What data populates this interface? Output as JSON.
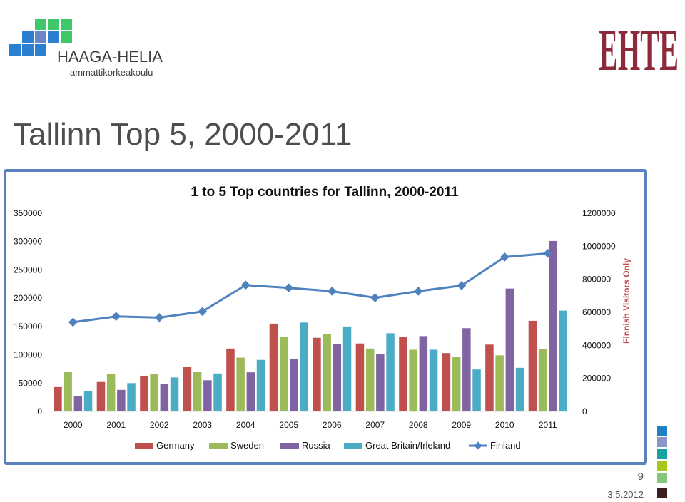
{
  "slide": {
    "title": "Tallinn Top 5, 2000-2011",
    "page_number": "9",
    "date": "3.5.2012"
  },
  "logos": {
    "left_name": "HAAGA-HELIA",
    "left_sub": "ammattikorkeakoulu",
    "right_name": "EHTE"
  },
  "colors": {
    "Germany": "#c0504d",
    "Sweden": "#9bbb59",
    "Russia": "#8064a2",
    "GreatBritain": "#4bacc6",
    "Finland": "#4f81bd",
    "frame": "#5a82be",
    "accent_text": "#c0504d"
  },
  "side_squares": [
    "#1f7fc4",
    "#8a96c8",
    "#17a2a0",
    "#a8c81e",
    "#82c87a",
    "#3c1e1e"
  ],
  "chart_data": {
    "type": "bar",
    "title": "1 to 5 Top countries for Tallinn, 2000-2011",
    "categories": [
      "2000",
      "2001",
      "2002",
      "2003",
      "2004",
      "2005",
      "2006",
      "2007",
      "2008",
      "2009",
      "2010",
      "2011"
    ],
    "series": [
      {
        "name": "Germany",
        "type": "bar",
        "axis": "left",
        "values": [
          43000,
          52000,
          63000,
          79000,
          111000,
          155000,
          130000,
          120000,
          131000,
          103000,
          118000,
          160000
        ]
      },
      {
        "name": "Sweden",
        "type": "bar",
        "axis": "left",
        "values": [
          70000,
          66000,
          66000,
          70000,
          95000,
          132000,
          137000,
          111000,
          109000,
          96000,
          99000,
          110000
        ]
      },
      {
        "name": "Russia",
        "type": "bar",
        "axis": "left",
        "values": [
          27000,
          38000,
          48000,
          55000,
          69000,
          92000,
          119000,
          101000,
          133000,
          147000,
          217000,
          301000
        ]
      },
      {
        "name": "Great Britain/Irleland",
        "type": "bar",
        "axis": "left",
        "values": [
          36000,
          50000,
          60000,
          67000,
          91000,
          157000,
          150000,
          138000,
          109000,
          74000,
          77000,
          178000
        ]
      },
      {
        "name": "Finland",
        "type": "line",
        "axis": "right",
        "values": [
          540000,
          575000,
          568000,
          605000,
          765000,
          748000,
          728000,
          688000,
          728000,
          762000,
          935000,
          957000
        ]
      }
    ],
    "y_left": {
      "min": 0,
      "max": 350000,
      "ticks": [
        0,
        50000,
        100000,
        150000,
        200000,
        250000,
        300000,
        350000
      ]
    },
    "y_right": {
      "min": 0,
      "max": 1200000,
      "ticks": [
        0,
        200000,
        400000,
        600000,
        800000,
        1000000,
        1200000
      ],
      "label": "Finnish Visitors Only"
    },
    "legend_position": "bottom",
    "grid": false
  }
}
